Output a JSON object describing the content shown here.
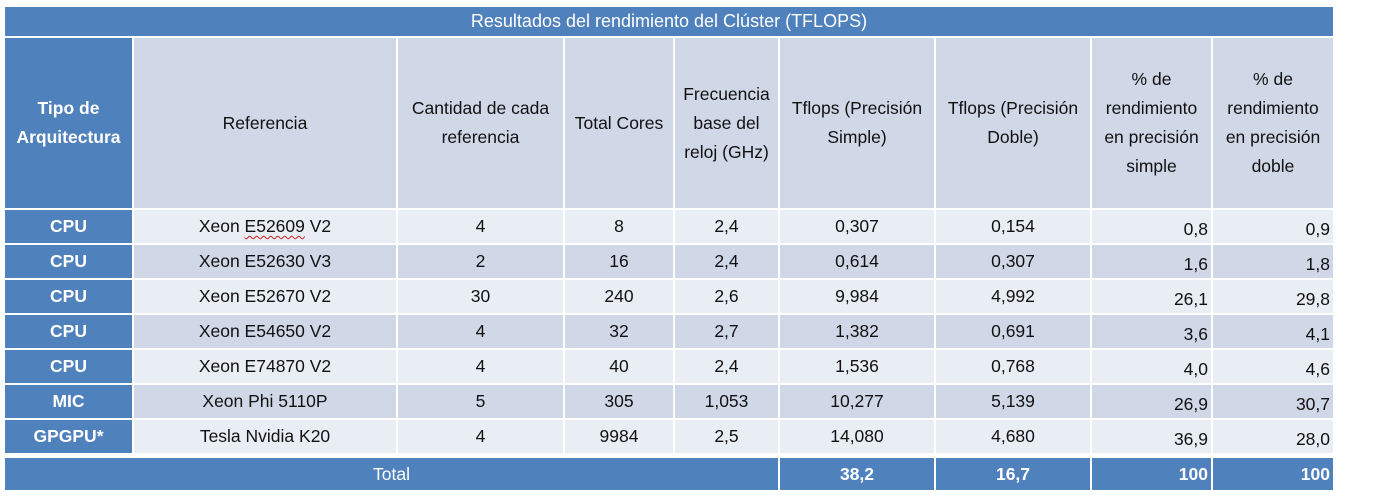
{
  "title": "Resultados del rendimiento del Clúster (TFLOPS)",
  "headers": [
    "Tipo de Arquitectura",
    "Referencia",
    "Cantidad de cada referencia",
    "Total Cores",
    "Frecuencia base del reloj (GHz)",
    "Tflops (Precisión Simple)",
    "Tflops (Precisión Doble)",
    "% de rendimiento en precisión simple",
    "% de rendimiento en precisión doble"
  ],
  "rows": [
    [
      "CPU",
      "Xeon E52609 V2",
      "4",
      "8",
      "2,4",
      "0,307",
      "0,154",
      "0,8",
      "0,9"
    ],
    [
      "CPU",
      "Xeon E52630 V3",
      "2",
      "16",
      "2,4",
      "0,614",
      "0,307",
      "1,6",
      "1,8"
    ],
    [
      "CPU",
      "Xeon E52670 V2",
      "30",
      "240",
      "2,6",
      "9,984",
      "4,992",
      "26,1",
      "29,8"
    ],
    [
      "CPU",
      "Xeon E54650 V2",
      "4",
      "32",
      "2,7",
      "1,382",
      "0,691",
      "3,6",
      "4,1"
    ],
    [
      "CPU",
      "Xeon E74870 V2",
      "4",
      "40",
      "2,4",
      "1,536",
      "0,768",
      "4,0",
      "4,6"
    ],
    [
      "MIC",
      "Xeon Phi 5110P",
      "5",
      "305",
      "1,053",
      "10,277",
      "5,139",
      "26,9",
      "30,7"
    ],
    [
      "GPGPU*",
      "Tesla Nvidia K20",
      "4",
      "9984",
      "2,5",
      "14,080",
      "4,680",
      "36,9",
      "28,0"
    ]
  ],
  "total": {
    "label": "Total",
    "sp": "38,2",
    "dp": "16,7",
    "pct_sp": "100",
    "pct_dp": "100"
  },
  "colors": {
    "accent": "#4f81bd",
    "row_light": "#e9edf4",
    "row_dark": "#d0d8e8"
  }
}
